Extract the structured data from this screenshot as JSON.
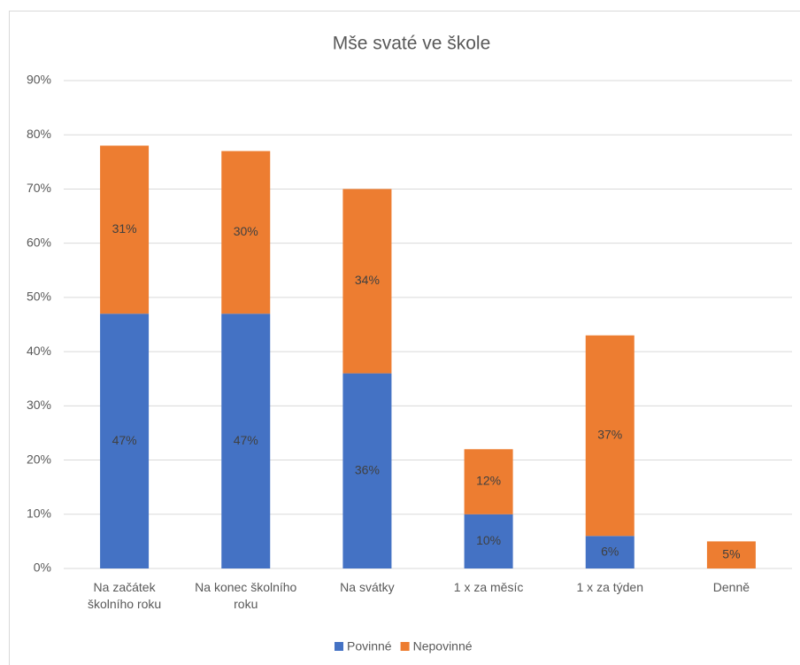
{
  "chart_data": {
    "type": "stacked_bar",
    "title": "Mše svaté ve škole",
    "categories": [
      "Na začátek školního roku",
      "Na konec školního roku",
      "Na svátky",
      "1 x za měsíc",
      "1 x za týden",
      "Denně"
    ],
    "series": [
      {
        "name": "Povinné",
        "color": "#4472c4",
        "values": [
          47,
          47,
          36,
          10,
          6,
          null
        ],
        "value_labels": [
          "47%",
          "47%",
          "36%",
          "10%",
          "6%",
          null
        ]
      },
      {
        "name": "Nepovinné",
        "color": "#ed7d31",
        "values": [
          31,
          30,
          34,
          12,
          37,
          5
        ],
        "value_labels": [
          "31%",
          "30%",
          "34%",
          "12%",
          "37%",
          "5%"
        ]
      }
    ],
    "ylim": [
      0,
      90
    ],
    "yticks": [
      {
        "value": 0,
        "label": "0%"
      },
      {
        "value": 10,
        "label": "10%"
      },
      {
        "value": 20,
        "label": "20%"
      },
      {
        "value": 30,
        "label": "30%"
      },
      {
        "value": 40,
        "label": "40%"
      },
      {
        "value": 50,
        "label": "50%"
      },
      {
        "value": 60,
        "label": "60%"
      },
      {
        "value": 70,
        "label": "70%"
      },
      {
        "value": 80,
        "label": "80%"
      },
      {
        "value": 90,
        "label": "90%"
      }
    ],
    "grid": true,
    "legend": "bottom"
  }
}
